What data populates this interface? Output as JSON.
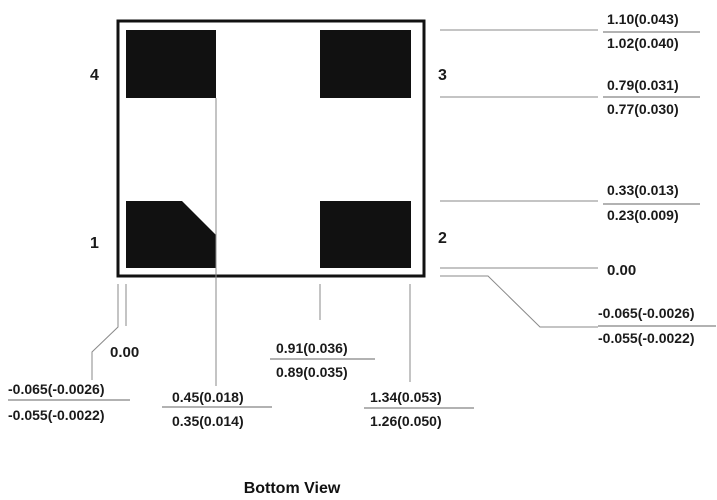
{
  "pins": [
    "1",
    "2",
    "3",
    "4"
  ],
  "right_dims": {
    "top_upper": "1.10(0.043)",
    "top_lower": "1.02(0.040)",
    "mid_upper": "0.79(0.031)",
    "mid_lower": "0.77(0.030)",
    "low_upper": "0.33(0.013)",
    "low_lower": "0.23(0.009)",
    "origin": "0.00",
    "offset_upper": "-0.065(-0.0026)",
    "offset_lower": "-0.055(-0.0022)"
  },
  "bottom_dims": {
    "origin": "0.00",
    "offset_upper": "-0.065(-0.0026)",
    "offset_lower": "-0.055(-0.0022)",
    "pad_a_upper": "0.45(0.018)",
    "pad_a_lower": "0.35(0.014)",
    "mid_upper": "0.91(0.036)",
    "mid_lower": "0.89(0.035)",
    "pad_b_upper": "1.34(0.053)",
    "pad_b_lower": "1.26(0.050)"
  },
  "caption": "Bottom View"
}
